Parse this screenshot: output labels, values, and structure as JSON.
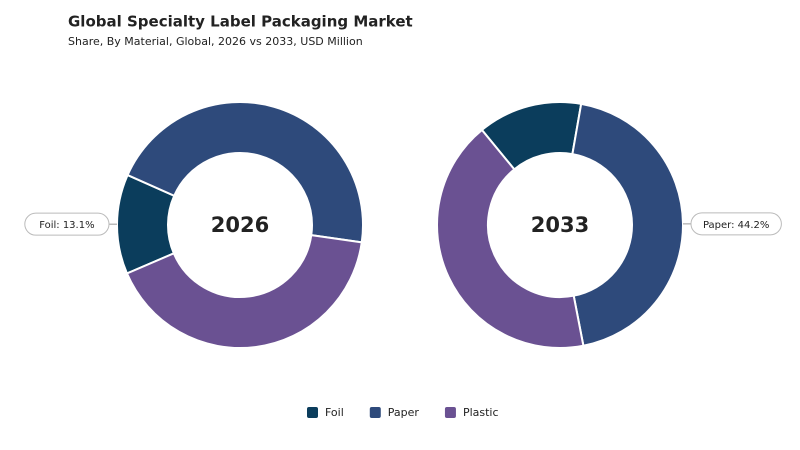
{
  "chart_data": {
    "type": "donut",
    "title": "Global Specialty Label Packaging Market",
    "subtitle": "Share, By Material, Global, 2026 vs 2033, USD Million",
    "categories": [
      "Foil",
      "Paper",
      "Plastic"
    ],
    "colors": [
      "#0b3d5c",
      "#2e4a7b",
      "#6a5192"
    ],
    "series": [
      {
        "name": "2026",
        "values": [
          13.1,
          45.6,
          41.3
        ],
        "value_labels": [
          "Foil: 13.1%",
          null,
          null
        ]
      },
      {
        "name": "2033",
        "values": [
          13.7,
          44.2,
          42.1
        ],
        "value_labels": [
          null,
          "Paper: 44.2%",
          null
        ]
      }
    ]
  }
}
